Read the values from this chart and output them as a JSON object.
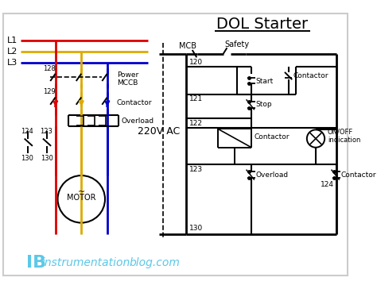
{
  "title": "DOL Starter",
  "bg_color": "#ffffff",
  "red_line": "#dd0000",
  "yellow_line": "#ddaa00",
  "blue_line": "#0000cc",
  "watermark_color": "#5bc8e8",
  "label_220v": "220V AC",
  "label_mcb": "MCB",
  "label_safety": "Safety",
  "label_start": "Start",
  "label_stop": "Stop",
  "label_contactor_top": "Contactor",
  "label_contactor_coil": "Contactor",
  "label_contactor_bot": "Contactor",
  "label_overload_left": "Overload",
  "label_overload_right": "Overload",
  "label_onoff": "ON/OFF\nindication",
  "label_power_mccb": "Power\nMCCB",
  "label_motor": "MOTOR",
  "label_L1": "L1",
  "label_L2": "L2",
  "label_L3": "L3",
  "n128": "128",
  "n129": "129",
  "n123L": "123",
  "n124L": "124",
  "n130La": "130",
  "n130Lb": "130",
  "n120": "120",
  "n121": "121",
  "n122": "122",
  "n123R": "123",
  "n124R": "124",
  "n130R": "130"
}
